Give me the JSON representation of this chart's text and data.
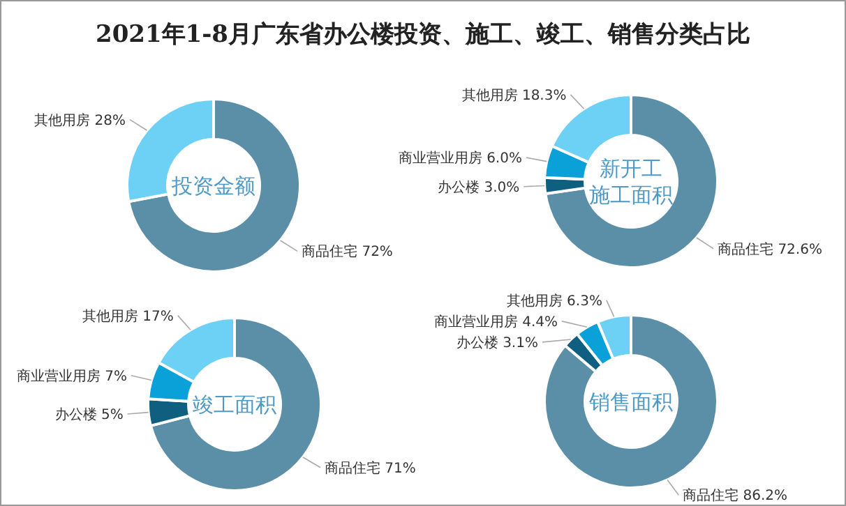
{
  "chart_data": [
    {
      "type": "donut",
      "title": "2021年1-8月广东省办公楼投资、施工、竣工、销售分类占比",
      "subtitle": "投资金额",
      "categories": [
        "商品住宅",
        "其他用房"
      ],
      "values": [
        72,
        28
      ],
      "colors": [
        "#5b8fa8",
        "#6dd0f5"
      ],
      "value_labels": [
        "72%",
        "28%"
      ]
    },
    {
      "type": "donut",
      "subtitle": "新开工施工面积",
      "categories": [
        "商品住宅",
        "办公楼",
        "商业营业用房",
        "其他用房"
      ],
      "values": [
        72.6,
        3.0,
        6.0,
        18.3
      ],
      "colors": [
        "#5b8fa8",
        "#0f5f80",
        "#0aa0d8",
        "#6dd0f5"
      ],
      "value_labels": [
        "72.6%",
        "3.0%",
        "6.0%",
        "18.3%"
      ]
    },
    {
      "type": "donut",
      "subtitle": "竣工面积",
      "categories": [
        "商品住宅",
        "办公楼",
        "商业营业用房",
        "其他用房"
      ],
      "values": [
        71,
        5,
        7,
        17
      ],
      "colors": [
        "#5b8fa8",
        "#0f5f80",
        "#0aa0d8",
        "#6dd0f5"
      ],
      "value_labels": [
        "71%",
        "5%",
        "7%",
        "17%"
      ]
    },
    {
      "type": "donut",
      "subtitle": "销售面积",
      "categories": [
        "商品住宅",
        "办公楼",
        "商业营业用房",
        "其他用房"
      ],
      "values": [
        86.2,
        3.1,
        4.4,
        6.3
      ],
      "colors": [
        "#5b8fa8",
        "#0f5f80",
        "#0aa0d8",
        "#6dd0f5"
      ],
      "value_labels": [
        "86.2%",
        "3.1%",
        "4.4%",
        "6.3%"
      ]
    }
  ]
}
